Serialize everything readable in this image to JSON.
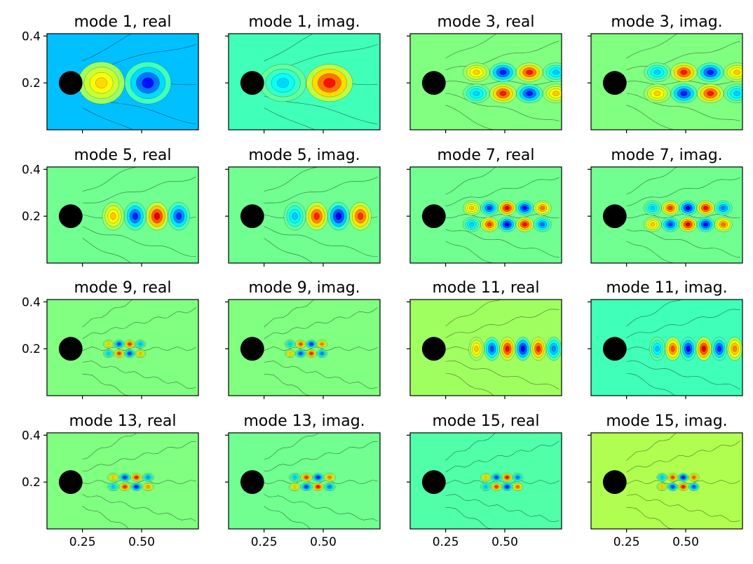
{
  "chart_data": {
    "type": "heatmap",
    "colormap": "jet",
    "grid": false,
    "rows": 4,
    "cols": 4,
    "x_ticks": [
      "0.25",
      "0.50"
    ],
    "x_tick_values": [
      0.25,
      0.5
    ],
    "y_ticks": [
      "0.4",
      "0.2"
    ],
    "y_tick_values": [
      0.4,
      0.2
    ],
    "xlim": [
      0.1,
      0.74
    ],
    "ylim": [
      0.0,
      0.41
    ],
    "cylinder": {
      "center": [
        0.2,
        0.2
      ],
      "radius": 0.05,
      "color": "#000000"
    },
    "panels": [
      {
        "title": "mode 1, real",
        "background": "#00c0ff",
        "k": 16,
        "x0": 0.33,
        "x1": 0.7,
        "sep": 0.0,
        "spread": 0.09,
        "amp": 0.8
      },
      {
        "title": "mode 1, imag.",
        "background": "#40ffb8",
        "k": 16,
        "x0": 0.33,
        "x1": 0.72,
        "sep": 0.0,
        "spread": 0.08,
        "amp": 0.8
      },
      {
        "title": "mode 3, real",
        "background": "#80ff80",
        "k": 28,
        "x0": 0.38,
        "x1": 0.72,
        "sep": 0.045,
        "spread": 0.05,
        "amp": 0.85
      },
      {
        "title": "mode 3, imag.",
        "background": "#80ff80",
        "k": 28,
        "x0": 0.38,
        "x1": 0.72,
        "sep": 0.045,
        "spread": 0.05,
        "amp": 0.85
      },
      {
        "title": "mode 5, real",
        "background": "#70ff90",
        "k": 34,
        "x0": 0.38,
        "x1": 0.74,
        "sep": 0.0,
        "spread": 0.06,
        "amp": 0.9
      },
      {
        "title": "mode 5, imag.",
        "background": "#70ff90",
        "k": 34,
        "x0": 0.38,
        "x1": 0.74,
        "sep": 0.0,
        "spread": 0.06,
        "amp": 0.9
      },
      {
        "title": "mode 7, real",
        "background": "#70ff90",
        "k": 42,
        "x0": 0.36,
        "x1": 0.7,
        "sep": 0.035,
        "spread": 0.04,
        "amp": 0.9
      },
      {
        "title": "mode 7, imag.",
        "background": "#70ff90",
        "k": 42,
        "x0": 0.36,
        "x1": 0.7,
        "sep": 0.035,
        "spread": 0.04,
        "amp": 0.9
      },
      {
        "title": "mode 9, real",
        "background": "#80ff80",
        "k": 70,
        "x0": 0.36,
        "x1": 0.5,
        "sep": 0.02,
        "spread": 0.03,
        "amp": 0.8
      },
      {
        "title": "mode 9, imag.",
        "background": "#80ff80",
        "k": 70,
        "x0": 0.36,
        "x1": 0.52,
        "sep": 0.02,
        "spread": 0.03,
        "amp": 0.8
      },
      {
        "title": "mode 11, real",
        "background": "#a0ff60",
        "k": 48,
        "x0": 0.38,
        "x1": 0.74,
        "sep": 0.0,
        "spread": 0.05,
        "amp": 0.9
      },
      {
        "title": "mode 11, imag.",
        "background": "#40ffb8",
        "k": 48,
        "x0": 0.38,
        "x1": 0.74,
        "sep": 0.0,
        "spread": 0.05,
        "amp": 0.9
      },
      {
        "title": "mode 13, real",
        "background": "#80ff80",
        "k": 64,
        "x0": 0.38,
        "x1": 0.54,
        "sep": 0.02,
        "spread": 0.035,
        "amp": 0.85
      },
      {
        "title": "mode 13, imag.",
        "background": "#70ff90",
        "k": 64,
        "x0": 0.38,
        "x1": 0.55,
        "sep": 0.02,
        "spread": 0.035,
        "amp": 0.85
      },
      {
        "title": "mode 15, real",
        "background": "#50ffa8",
        "k": 70,
        "x0": 0.42,
        "x1": 0.58,
        "sep": 0.02,
        "spread": 0.03,
        "amp": 0.85
      },
      {
        "title": "mode 15, imag.",
        "background": "#b0ff50",
        "k": 70,
        "x0": 0.4,
        "x1": 0.57,
        "sep": 0.02,
        "spread": 0.03,
        "amp": 0.85
      }
    ]
  }
}
